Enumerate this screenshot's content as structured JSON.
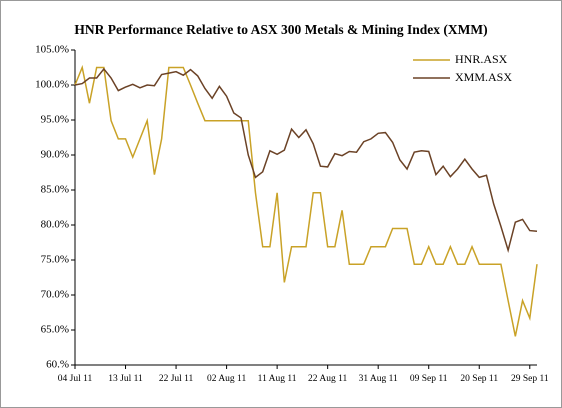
{
  "chart_data": {
    "type": "line",
    "title": "HNR Performance Relative to ASX 300 Metals & Mining Index (XMM)",
    "categories": [
      "04 Jul 11",
      null,
      null,
      null,
      null,
      null,
      null,
      "13 Jul 11",
      null,
      null,
      null,
      null,
      null,
      null,
      "22 Jul 11",
      null,
      null,
      null,
      null,
      null,
      null,
      "02 Aug 11",
      null,
      null,
      null,
      null,
      null,
      null,
      "11 Aug 11",
      null,
      null,
      null,
      null,
      null,
      null,
      "22 Aug 11",
      null,
      null,
      null,
      null,
      null,
      null,
      "31 Aug 11",
      null,
      null,
      null,
      null,
      null,
      null,
      "09 Sep 11",
      null,
      null,
      null,
      null,
      null,
      null,
      "20 Sep 11",
      null,
      null,
      null,
      null,
      null,
      null,
      "29 Sep 11",
      null
    ],
    "series": [
      {
        "name": "HNR.ASX",
        "color": "#c9a227",
        "values": [
          100,
          102.5,
          97.4,
          102.5,
          102.5,
          94.9,
          92.3,
          92.3,
          89.7,
          92.3,
          94.9,
          87.2,
          92.3,
          102.5,
          102.5,
          102.5,
          100,
          97.4,
          94.9,
          94.9,
          94.9,
          94.9,
          94.9,
          94.9,
          94.9,
          84.6,
          76.9,
          76.9,
          84.6,
          71.8,
          76.9,
          76.9,
          76.9,
          84.6,
          84.6,
          76.9,
          76.9,
          82.1,
          74.4,
          74.4,
          74.4,
          76.9,
          76.9,
          76.9,
          79.5,
          79.5,
          79.5,
          74.4,
          74.4,
          76.9,
          74.4,
          74.4,
          76.9,
          74.4,
          74.4,
          76.9,
          74.4,
          74.4,
          74.4,
          74.4,
          69.2,
          64.1,
          69.2,
          66.7,
          74.4
        ]
      },
      {
        "name": "XMM.ASX",
        "color": "#6b4226",
        "values": [
          100,
          100.2,
          101,
          101,
          102.3,
          101,
          99.2,
          99.7,
          100.1,
          99.6,
          100,
          99.9,
          101.5,
          101.7,
          101.9,
          101.4,
          102.2,
          101.3,
          99.5,
          98.1,
          99.8,
          98.4,
          96,
          95.3,
          90,
          86.8,
          87.6,
          90.6,
          90.1,
          90.7,
          93.7,
          92.5,
          93.6,
          91.6,
          88.4,
          88.3,
          90.2,
          89.9,
          90.5,
          90.4,
          91.9,
          92.3,
          93.1,
          93.2,
          91.8,
          89.3,
          88,
          90.4,
          90.6,
          90.5,
          87.2,
          88.4,
          86.9,
          88,
          89.4,
          88,
          86.8,
          87.1,
          83,
          79.8,
          76.4,
          80.4,
          80.8,
          79.2,
          79.1
        ]
      }
    ],
    "ylim": [
      60,
      105
    ],
    "yticks": [
      {
        "value": 60,
        "label": "60.%"
      },
      {
        "value": 65,
        "label": "65.0%"
      },
      {
        "value": 70,
        "label": "70.0%"
      },
      {
        "value": 75,
        "label": "75.0%"
      },
      {
        "value": 80,
        "label": "80.0%"
      },
      {
        "value": 85,
        "label": "85.0%"
      },
      {
        "value": 90,
        "label": "90.0%"
      },
      {
        "value": 95,
        "label": "95.0%"
      },
      {
        "value": 100,
        "label": "100.0%"
      },
      {
        "value": 105,
        "label": "105.0%"
      }
    ],
    "grid": false,
    "legend": "upper right"
  }
}
